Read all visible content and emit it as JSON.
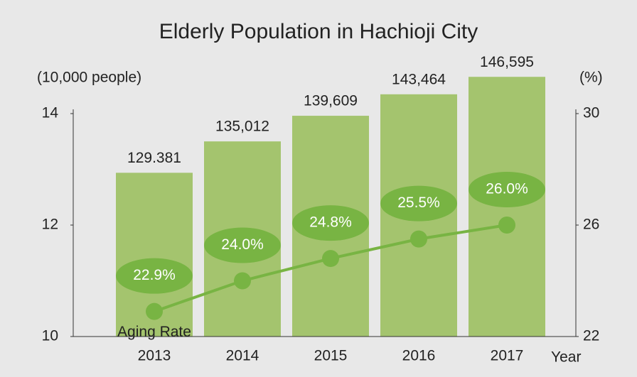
{
  "chart_data": {
    "type": "bar",
    "title": "Elderly Population in Hachioji City",
    "y_label": "(10,000 people)",
    "y2_label": "(%)",
    "x_label": "Year",
    "categories": [
      "2013",
      "2014",
      "2015",
      "2016",
      "2017"
    ],
    "values": [
      12.9381,
      13.5012,
      13.9609,
      14.3464,
      14.6595
    ],
    "value_labels": [
      "129.381",
      "135,012",
      "139,609",
      "143,464",
      "146,595"
    ],
    "color": "#a4c46e",
    "series": [
      {
        "name": "Aging Rate",
        "type": "line",
        "axis": "y2",
        "color": "#78b443",
        "values": [
          22.9,
          24.0,
          24.8,
          25.5,
          26.0
        ],
        "value_labels": [
          "22.9%",
          "24.0%",
          "24.8%",
          "25.5%",
          "26.0%"
        ]
      }
    ],
    "ylim": [
      10,
      14
    ],
    "yticks": [
      10,
      12,
      14
    ],
    "y2lim": [
      22,
      30
    ],
    "y2ticks": [
      22,
      26,
      30
    ]
  }
}
